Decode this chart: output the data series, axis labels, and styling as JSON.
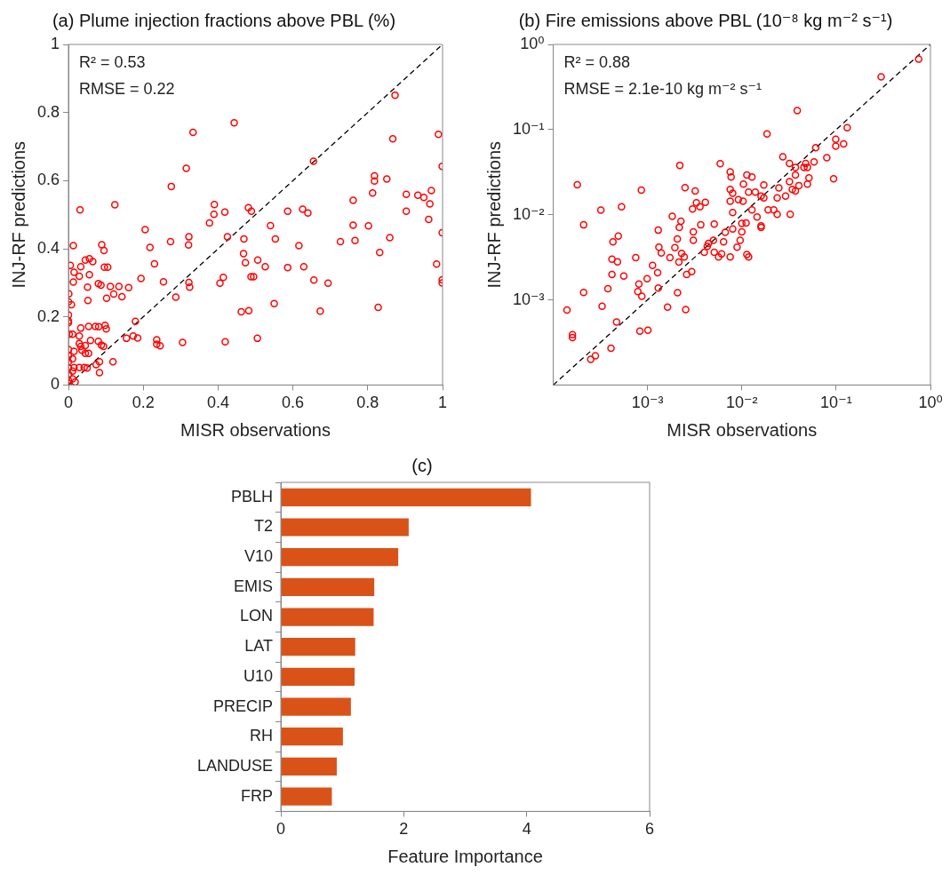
{
  "chart_data": [
    {
      "type": "scatter",
      "title": "(a) Plume injection fractions above PBL (%)",
      "xlabel": "MISR observations",
      "ylabel": "INJ-RF predictions",
      "annotations": [
        "R² = 0.53",
        "RMSE = 0.22"
      ],
      "xlim": [
        0,
        1
      ],
      "ylim": [
        0,
        1
      ],
      "xticks": [
        0,
        0.2,
        0.4,
        0.6,
        0.8,
        1
      ],
      "yticks": [
        0,
        0.2,
        0.4,
        0.6,
        0.8,
        1
      ],
      "marker": "circle",
      "legend": false,
      "series": [
        {
          "type": "scatter",
          "color": "#ff0000",
          "x": [
            0.873,
            0.443,
            0.333,
            0.989,
            0.867,
            0.655,
            0.999,
            0.315,
            0.275,
            0.818,
            0.818,
            0.851,
            0.813,
            0.97,
            0.903,
            0.903,
            0.934,
            0.95,
            0.966,
            0.963,
            0.761,
            0.761,
            0.802,
            0.766,
            0.727,
            0.859,
            0.832,
            0.999,
            0.984,
            0.999,
            0.999,
            0.828,
            0.031,
            0.124,
            0.39,
            0.389,
            0.418,
            0.481,
            0.489,
            0.586,
            0.626,
            0.64,
            0.377,
            0.54,
            0.205,
            0.425,
            0.469,
            0.553,
            0.616,
            0.322,
            0.321,
            0.273,
            0.218,
            0.013,
            0.089,
            0.095,
            0.468,
            0.473,
            0.506,
            0.526,
            0.586,
            0.629,
            0.23,
            0.005,
            0.033,
            0.045,
            0.056,
            0.065,
            0.096,
            0.105,
            0.015,
            0.029,
            0.056,
            0.013,
            0.194,
            0.254,
            0.322,
            0.324,
            0.414,
            0.405,
            0.488,
            0.495,
            0.656,
            0.694,
            0.08,
            0.087,
            0.051,
            0.112,
            0.135,
            0.161,
            0.121,
            0.143,
            0.102,
            0.052,
            0.287,
            0.001,
            0,
            0.008,
            0.55,
            0.462,
            0.482,
            0.673,
            0,
            0,
            0,
            0.179,
            0.033,
            0.054,
            0.072,
            0.081,
            0.098,
            0.101,
            0.011,
            0.002,
            0.029,
            0.155,
            0.173,
            0.185,
            0.236,
            0.236,
            0.245,
            0.305,
            0.419,
            0.505,
            0.059,
            0.08,
            0.088,
            0.094,
            0.033,
            0.045,
            0.029,
            0.015,
            0.036,
            0.045,
            0.054,
            0,
            0,
            0,
            0,
            0,
            0,
            0,
            0.011,
            0.011,
            0.011,
            0.083,
            0.074,
            0.083,
            0.119,
            0.015,
            0.029,
            0.042,
            0.05,
            0.018
          ],
          "values": [
            0.851,
            0.77,
            0.742,
            0.736,
            0.723,
            0.657,
            0.642,
            0.636,
            0.583,
            0.614,
            0.599,
            0.605,
            0.564,
            0.571,
            0.56,
            0.51,
            0.557,
            0.551,
            0.532,
            0.486,
            0.542,
            0.469,
            0.467,
            0.424,
            0.421,
            0.433,
            0.389,
            0.447,
            0.355,
            0.309,
            0.3,
            0.228,
            0.514,
            0.529,
            0.53,
            0.501,
            0.508,
            0.521,
            0.51,
            0.51,
            0.516,
            0.505,
            0.476,
            0.468,
            0.456,
            0.435,
            0.429,
            0.429,
            0.409,
            0.435,
            0.411,
            0.421,
            0.404,
            0.409,
            0.412,
            0.395,
            0.386,
            0.359,
            0.367,
            0.347,
            0.345,
            0.347,
            0.356,
            0.351,
            0.347,
            0.367,
            0.371,
            0.362,
            0.346,
            0.346,
            0.331,
            0.319,
            0.324,
            0.302,
            0.313,
            0.303,
            0.301,
            0.287,
            0.316,
            0.299,
            0.318,
            0.318,
            0.308,
            0.299,
            0.298,
            0.293,
            0.287,
            0.289,
            0.289,
            0.286,
            0.267,
            0.259,
            0.255,
            0.248,
            0.258,
            0.268,
            0.244,
            0.236,
            0.239,
            0.215,
            0.218,
            0.217,
            0.206,
            0.188,
            0.183,
            0.187,
            0.167,
            0.172,
            0.172,
            0.171,
            0.175,
            0.165,
            0.149,
            0.149,
            0.144,
            0.137,
            0.144,
            0.138,
            0.133,
            0.12,
            0.115,
            0.125,
            0.127,
            0.137,
            0.131,
            0.128,
            0.117,
            0.113,
            0.113,
            0.116,
            0.122,
            0.099,
            0.102,
            0.093,
            0.093,
            0.104,
            0.086,
            0.068,
            0.05,
            0.032,
            0.014,
            0.005,
            0.077,
            0.041,
            0.018,
            0.068,
            0.06,
            0.036,
            0.068,
            0.051,
            0.051,
            0.051,
            0.05,
            0.009
          ]
        },
        {
          "type": "line",
          "color": "#000000",
          "x": [
            0,
            1
          ],
          "values": [
            0,
            1
          ],
          "line_style": "dashed",
          "marker": "none"
        }
      ]
    },
    {
      "type": "scatter",
      "title": "(b) Fire emissions above PBL (10⁻⁸ kg m⁻² s⁻¹)",
      "xlabel": "MISR observations",
      "ylabel": "INJ-RF predictions",
      "annotations": [
        "R² = 0.88",
        "RMSE = 2.1e-10 kg m⁻² s⁻¹"
      ],
      "log": "xy",
      "xlim": [
        0.0001,
        1
      ],
      "ylim": [
        0.0001,
        1
      ],
      "xticks": [
        {
          "value": 0.001,
          "label": "10⁻³"
        },
        {
          "value": 0.01,
          "label": "10⁻²"
        },
        {
          "value": 0.1,
          "label": "10⁻¹"
        },
        {
          "value": 1,
          "label": "10⁰"
        }
      ],
      "yticks": [
        {
          "value": 0.001,
          "label": "10⁻³"
        },
        {
          "value": 0.01,
          "label": "10⁻²"
        },
        {
          "value": 0.1,
          "label": "10⁻¹"
        },
        {
          "value": 1,
          "label": "10⁰"
        }
      ],
      "marker": "circle",
      "legend": false,
      "series": [
        {
          "type": "scatter",
          "color": "#ff0000",
          "x": [
            0.75,
            0.3,
            0.0387,
            0.131,
            0.0185,
            0.099,
            0.099,
            0.12,
            0.0475,
            0.0607,
            0.0796,
            0.0272,
            0.032,
            0.037,
            0.0456,
            0.0496,
            0.0583,
            0.094,
            0.0515,
            0.0496,
            0.032,
            0.037,
            0.0403,
            0.0343,
            0.037,
            0.0247,
            0.0291,
            0.0237,
            0.0218,
            0.0237,
            0.0326,
            0.019,
            0.0171,
            0.0171,
            0.016,
            0.0139,
            0.0128,
            0.0113,
            0.0104,
            0.0118,
            0.0103,
            0.0128,
            0.0145,
            0.016,
            0.016,
            0.00753,
            0.0077,
            0.00753,
            0.008,
            0.0092,
            0.00753,
            0.0059,
            0.008,
            0.01,
            0.0111,
            0.008,
            0.01,
            0.0096,
            0.0089,
            0.00667,
            0.0064,
            0.0051,
            0.005,
            0.00443,
            0.0043,
            0.004,
            0.0051,
            0.00566,
            0.0061,
            0.00753,
            0.0113,
            0.0118,
            0.00367,
            0.00306,
            0.00306,
            0.003,
            0.0033,
            0.0032,
            0.0041,
            0.0036,
            0.0022,
            0.0025,
            0.00183,
            0.00226,
            0.00217,
            0.00207,
            0.00195,
            0.00215,
            0.0023,
            0.00245,
            0.00173,
            0.0014,
            0.00132,
            0.0013,
            0.00113,
            0.00128,
            0.00099,
            0.0026,
            0.00294,
            0.00208,
            0.0013,
            0.00086,
            0.00081,
            0.00079,
            0.00087,
            0.00075,
            0.00163,
            0.00254,
            0.00083,
            0.00101,
            0.00053,
            0.00049,
            0.00043,
            0.00048,
            0.00042,
            0.00042,
            0.00056,
            0.00038,
            0.00033,
            0.00047,
            0.00041,
            0.00025,
            0.00028,
            0.00016,
            0.00016,
            0.00014,
            0.00018,
            0.00032,
            0.00021,
            0.00021
          ],
          "values": [
            0.674,
            0.416,
            0.167,
            0.105,
            0.0887,
            0.077,
            0.064,
            0.068,
            0.04,
            0.0614,
            0.0468,
            0.048,
            0.04,
            0.036,
            0.036,
            0.036,
            0.0417,
            0.0264,
            0.027,
            0.0229,
            0.0244,
            0.0293,
            0.022,
            0.0198,
            0.019,
            0.0206,
            0.0165,
            0.0158,
            0.0114,
            0.0101,
            0.0101,
            0.0114,
            0.0158,
            0.0223,
            0.0165,
            0.0184,
            0.0277,
            0.0293,
            0.0229,
            0.0184,
            0.0144,
            0.0114,
            0.0094,
            0.0074,
            0.0071,
            0.0318,
            0.0277,
            0.0198,
            0.0179,
            0.015,
            0.0144,
            0.0397,
            0.0106,
            0.00789,
            0.008,
            0.0068,
            0.0063,
            0.005,
            0.00415,
            0.0062,
            0.0048,
            0.00776,
            0.005,
            0.0046,
            0.00426,
            0.00361,
            0.00361,
            0.0032,
            0.00347,
            0.0032,
            0.0034,
            0.0032,
            0.0076,
            0.005,
            0.0063,
            0.0117,
            0.0138,
            0.019,
            0.014,
            0.0124,
            0.038,
            0.0208,
            0.0096,
            0.0084,
            0.0071,
            0.0052,
            0.0041,
            0.00278,
            0.00352,
            0.0032,
            0.00314,
            0.00356,
            0.00415,
            0.00658,
            0.00254,
            0.00208,
            0.00177,
            0.00199,
            0.00215,
            0.00121,
            0.00138,
            0.0195,
            0.00153,
            0.00125,
            0.0011,
            0.00314,
            0.00082,
            0.00077,
            0.00043,
            0.00044,
            0.0124,
            0.0056,
            0.0048,
            0.0028,
            0.003,
            0.00199,
            0.0019,
            0.00135,
            0.00084,
            0.00055,
            0.00027,
            0.0002,
            0.00022,
            0.00039,
            0.00036,
            0.00076,
            0.0225,
            0.0113,
            0.0076,
            0.00122
          ]
        },
        {
          "type": "line",
          "color": "#000000",
          "x": [
            0.0001,
            1
          ],
          "values": [
            0.0001,
            1
          ],
          "line_style": "dashed",
          "marker": "none"
        }
      ]
    },
    {
      "type": "bar",
      "title": "(c)",
      "xlabel": "Feature Importance",
      "orientation": "horizontal",
      "legend": false,
      "categories": [
        "PBLH",
        "T2",
        "V10",
        "EMIS",
        "LON",
        "LAT",
        "U10",
        "PRECIP",
        "RH",
        "LANDUSE",
        "FRP"
      ],
      "values": [
        4.07,
        2.08,
        1.91,
        1.52,
        1.51,
        1.21,
        1.2,
        1.14,
        1.01,
        0.91,
        0.83
      ],
      "color": "#d95319",
      "xlim": [
        0,
        6
      ],
      "xticks": [
        0,
        2,
        4,
        6
      ]
    }
  ]
}
